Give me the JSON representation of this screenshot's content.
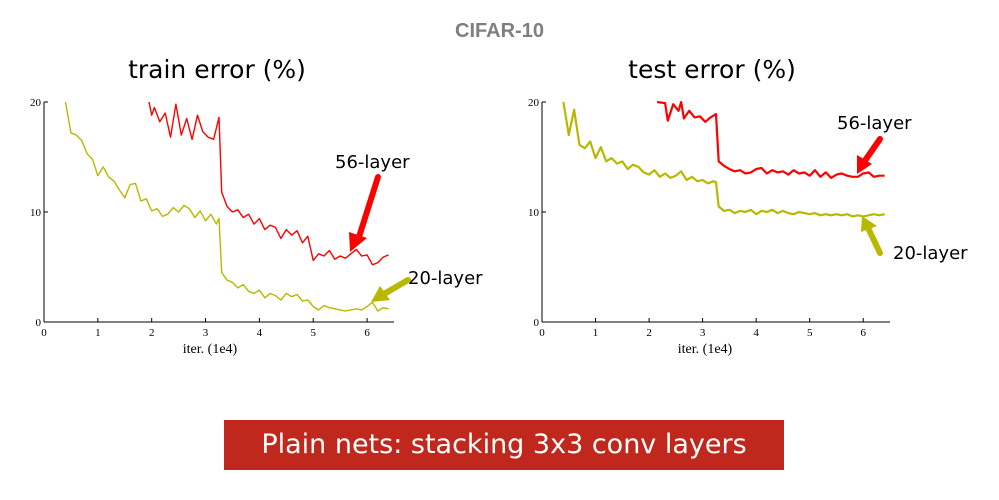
{
  "header": "CIFAR-10",
  "caption": "Plain nets: stacking 3x3 conv layers",
  "colors": {
    "series_56": "#ff0000",
    "series_20": "#b8b800"
  },
  "chart_data": [
    {
      "type": "line",
      "title": "train error (%)",
      "xlabel": "iter. (1e4)",
      "ylabel": "",
      "xlim": [
        0,
        6.5
      ],
      "ylim": [
        0,
        20
      ],
      "xticks": [
        "0",
        "1",
        "2",
        "3",
        "4",
        "5",
        "6"
      ],
      "yticks": [
        "0",
        "10",
        "20"
      ],
      "grid": false,
      "series": [
        {
          "name": "56-layer",
          "color": "#ff0000",
          "x": [
            1.95,
            2.0,
            2.05,
            2.15,
            2.25,
            2.35,
            2.45,
            2.55,
            2.65,
            2.75,
            2.85,
            2.95,
            3.05,
            3.15,
            3.25,
            3.3,
            3.4,
            3.5,
            3.6,
            3.7,
            3.8,
            3.9,
            4.0,
            4.1,
            4.2,
            4.3,
            4.4,
            4.5,
            4.6,
            4.7,
            4.8,
            4.9,
            5.0,
            5.1,
            5.2,
            5.3,
            5.4,
            5.5,
            5.6,
            5.7,
            5.8,
            5.9,
            6.0,
            6.1,
            6.2,
            6.3,
            6.4
          ],
          "y": [
            20,
            18.8,
            19.5,
            18.2,
            19.0,
            16.8,
            19.8,
            17.0,
            18.5,
            16.6,
            18.8,
            17.3,
            16.8,
            16.6,
            18.6,
            11.8,
            10.5,
            10.0,
            10.2,
            9.5,
            9.8,
            8.9,
            9.4,
            8.4,
            8.8,
            8.6,
            7.6,
            8.4,
            7.9,
            8.3,
            7.2,
            7.8,
            5.6,
            6.2,
            6.0,
            6.5,
            5.7,
            6.0,
            5.8,
            6.2,
            6.6,
            6.0,
            6.1,
            5.2,
            5.4,
            5.9,
            6.1
          ]
        },
        {
          "name": "20-layer",
          "color": "#b8b800",
          "x": [
            0.4,
            0.5,
            0.6,
            0.7,
            0.8,
            0.9,
            1.0,
            1.1,
            1.2,
            1.3,
            1.4,
            1.5,
            1.6,
            1.7,
            1.8,
            1.9,
            2.0,
            2.1,
            2.2,
            2.3,
            2.4,
            2.5,
            2.6,
            2.7,
            2.8,
            2.9,
            3.0,
            3.1,
            3.2,
            3.25,
            3.3,
            3.4,
            3.5,
            3.6,
            3.7,
            3.8,
            3.9,
            4.0,
            4.1,
            4.2,
            4.3,
            4.4,
            4.5,
            4.6,
            4.7,
            4.8,
            4.9,
            5.0,
            5.1,
            5.2,
            5.3,
            5.4,
            5.5,
            5.6,
            5.7,
            5.8,
            5.9,
            6.0,
            6.1,
            6.2,
            6.3,
            6.4
          ],
          "y": [
            20,
            17.2,
            17.0,
            16.5,
            15.3,
            14.8,
            13.3,
            14.1,
            13.2,
            12.8,
            12.0,
            11.3,
            12.5,
            12.6,
            11.0,
            11.2,
            10.1,
            10.3,
            9.6,
            9.8,
            10.4,
            10.0,
            10.6,
            10.3,
            9.5,
            10.1,
            9.2,
            9.8,
            8.9,
            9.4,
            4.5,
            3.8,
            3.6,
            3.1,
            3.4,
            2.8,
            2.6,
            2.9,
            2.2,
            2.6,
            2.4,
            2.0,
            2.6,
            2.3,
            2.5,
            1.9,
            2.0,
            1.4,
            1.1,
            1.5,
            1.3,
            1.2,
            1.1,
            1.0,
            1.1,
            1.2,
            1.1,
            1.4,
            1.8,
            1.0,
            1.3,
            1.2
          ]
        }
      ],
      "annotations": [
        "56-layer",
        "20-layer"
      ]
    },
    {
      "type": "line",
      "title": "test error (%)",
      "xlabel": "iter. (1e4)",
      "ylabel": "",
      "xlim": [
        0,
        6.5
      ],
      "ylim": [
        0,
        20
      ],
      "xticks": [
        "0",
        "1",
        "2",
        "3",
        "4",
        "5",
        "6"
      ],
      "yticks": [
        "0",
        "10",
        "20"
      ],
      "grid": false,
      "series": [
        {
          "name": "56-layer",
          "color": "#ff0000",
          "x": [
            2.15,
            2.3,
            2.35,
            2.45,
            2.55,
            2.6,
            2.65,
            2.75,
            2.85,
            2.95,
            3.05,
            3.15,
            3.25,
            3.3,
            3.4,
            3.5,
            3.6,
            3.7,
            3.8,
            3.9,
            4.0,
            4.1,
            4.2,
            4.3,
            4.4,
            4.5,
            4.6,
            4.7,
            4.8,
            4.9,
            5.0,
            5.1,
            5.2,
            5.3,
            5.4,
            5.5,
            5.6,
            5.7,
            5.8,
            5.9,
            6.0,
            6.1,
            6.2,
            6.3,
            6.4
          ],
          "y": [
            20,
            19.9,
            18.3,
            19.8,
            19.2,
            20.0,
            18.5,
            19.2,
            18.6,
            18.7,
            18.2,
            18.6,
            18.9,
            14.6,
            14.2,
            13.9,
            13.7,
            13.8,
            13.5,
            13.6,
            13.9,
            14.0,
            13.5,
            13.8,
            13.6,
            13.7,
            13.4,
            13.8,
            13.5,
            13.6,
            13.3,
            13.8,
            13.2,
            13.6,
            13.1,
            13.4,
            13.5,
            13.3,
            13.2,
            13.2,
            13.5,
            13.6,
            13.2,
            13.3,
            13.3
          ]
        },
        {
          "name": "20-layer",
          "color": "#b8b800",
          "x": [
            0.4,
            0.5,
            0.6,
            0.7,
            0.8,
            0.9,
            1.0,
            1.1,
            1.2,
            1.3,
            1.4,
            1.5,
            1.6,
            1.7,
            1.8,
            1.9,
            2.0,
            2.1,
            2.2,
            2.3,
            2.4,
            2.5,
            2.6,
            2.7,
            2.8,
            2.9,
            3.0,
            3.1,
            3.2,
            3.25,
            3.3,
            3.4,
            3.5,
            3.6,
            3.7,
            3.8,
            3.9,
            4.0,
            4.1,
            4.2,
            4.3,
            4.4,
            4.5,
            4.6,
            4.7,
            4.8,
            4.9,
            5.0,
            5.1,
            5.2,
            5.3,
            5.4,
            5.5,
            5.6,
            5.7,
            5.8,
            5.9,
            6.0,
            6.1,
            6.2,
            6.3,
            6.4
          ],
          "y": [
            20,
            17.0,
            19.3,
            16.1,
            15.8,
            16.4,
            14.9,
            15.9,
            14.6,
            14.9,
            14.4,
            14.6,
            13.9,
            14.3,
            14.1,
            13.6,
            13.4,
            13.8,
            13.2,
            13.5,
            13.1,
            13.3,
            13.7,
            12.9,
            13.2,
            12.8,
            12.9,
            12.6,
            12.8,
            12.7,
            10.5,
            10.1,
            10.2,
            9.9,
            10.1,
            10.0,
            10.2,
            9.8,
            10.1,
            10.0,
            10.2,
            9.9,
            10.1,
            9.9,
            9.8,
            10.0,
            9.9,
            9.8,
            9.9,
            9.7,
            9.8,
            9.7,
            9.8,
            9.7,
            9.8,
            9.6,
            9.7,
            9.6,
            9.7,
            9.8,
            9.7,
            9.8
          ]
        }
      ],
      "annotations": [
        "56-layer",
        "20-layer"
      ]
    }
  ]
}
